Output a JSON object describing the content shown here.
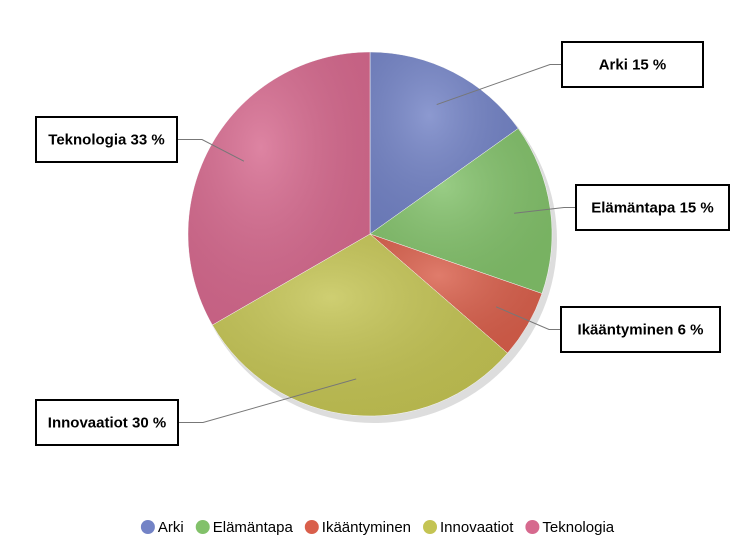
{
  "chart_data": {
    "type": "pie",
    "categories": [
      "Arki",
      "Elämäntapa",
      "Ikääntyminen",
      "Innovaatiot",
      "Teknologia"
    ],
    "values": [
      15,
      15,
      6,
      30,
      33
    ],
    "value_labels": [
      "15 %",
      "15 %",
      "6 %",
      "30 %",
      "33 %"
    ],
    "colors": [
      "#7383c6",
      "#82c16a",
      "#d95f4b",
      "#c4c453",
      "#d6698e"
    ],
    "legend": "bottom"
  }
}
